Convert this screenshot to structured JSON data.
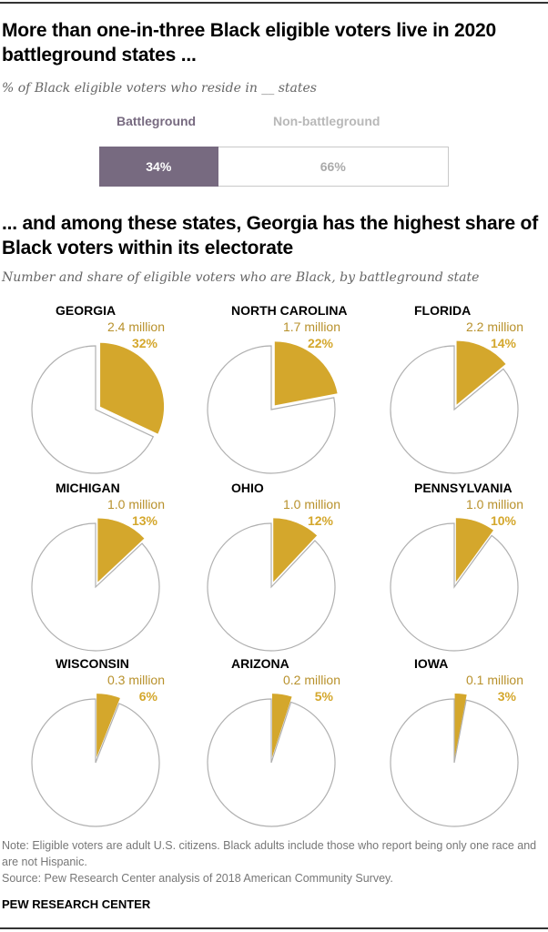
{
  "header": {
    "title1": "More than one-in-three Black eligible voters live in 2020 battleground states ...",
    "subtitle1": "% of Black eligible voters who reside in __ states",
    "title2": "... and among these states, Georgia has the highest share of Black voters within its electorate",
    "subtitle2": "Number and share of eligible voters who are Black, by battleground state"
  },
  "colors": {
    "battleground": "#776a80",
    "non_battleground_text": "#b8b8b8",
    "pie_accent": "#d4a72c",
    "pie_label": "#b8912c",
    "pie_outline": "#b0b0b0"
  },
  "chart_data": [
    {
      "type": "bar",
      "title": "More than one-in-three Black eligible voters live in 2020 battleground states ...",
      "subtitle": "% of Black eligible voters who reside in __ states",
      "orientation": "horizontal-stacked",
      "categories": [
        "Battleground",
        "Non-battleground"
      ],
      "values": [
        34,
        66
      ],
      "labels": [
        "34%",
        "66%"
      ],
      "legend": "top"
    },
    {
      "type": "pie",
      "title": "... and among these states, Georgia has the highest share of Black voters within its electorate",
      "subtitle": "Number and share of eligible voters who are Black, by battleground state",
      "series": [
        {
          "name": "GEORGIA",
          "count_label": "2.4 million",
          "share": 32,
          "share_label": "32%"
        },
        {
          "name": "NORTH CAROLINA",
          "count_label": "1.7 million",
          "share": 22,
          "share_label": "22%"
        },
        {
          "name": "FLORIDA",
          "count_label": "2.2 million",
          "share": 14,
          "share_label": "14%"
        },
        {
          "name": "MICHIGAN",
          "count_label": "1.0 million",
          "share": 13,
          "share_label": "13%"
        },
        {
          "name": "OHIO",
          "count_label": "1.0 million",
          "share": 12,
          "share_label": "12%"
        },
        {
          "name": "PENNSYLVANIA",
          "count_label": "1.0 million",
          "share": 10,
          "share_label": "10%"
        },
        {
          "name": "WISCONSIN",
          "count_label": "0.3 million",
          "share": 6,
          "share_label": "6%"
        },
        {
          "name": "ARIZONA",
          "count_label": "0.2 million",
          "share": 5,
          "share_label": "5%"
        },
        {
          "name": "IOWA",
          "count_label": "0.1 million",
          "share": 3,
          "share_label": "3%"
        }
      ]
    }
  ],
  "footer": {
    "note": "Note: Eligible voters are adult U.S. citizens. Black adults include those who report being only one race and are not Hispanic.",
    "source": "Source: Pew Research Center analysis of 2018 American Community Survey.",
    "brand": "PEW RESEARCH CENTER"
  }
}
